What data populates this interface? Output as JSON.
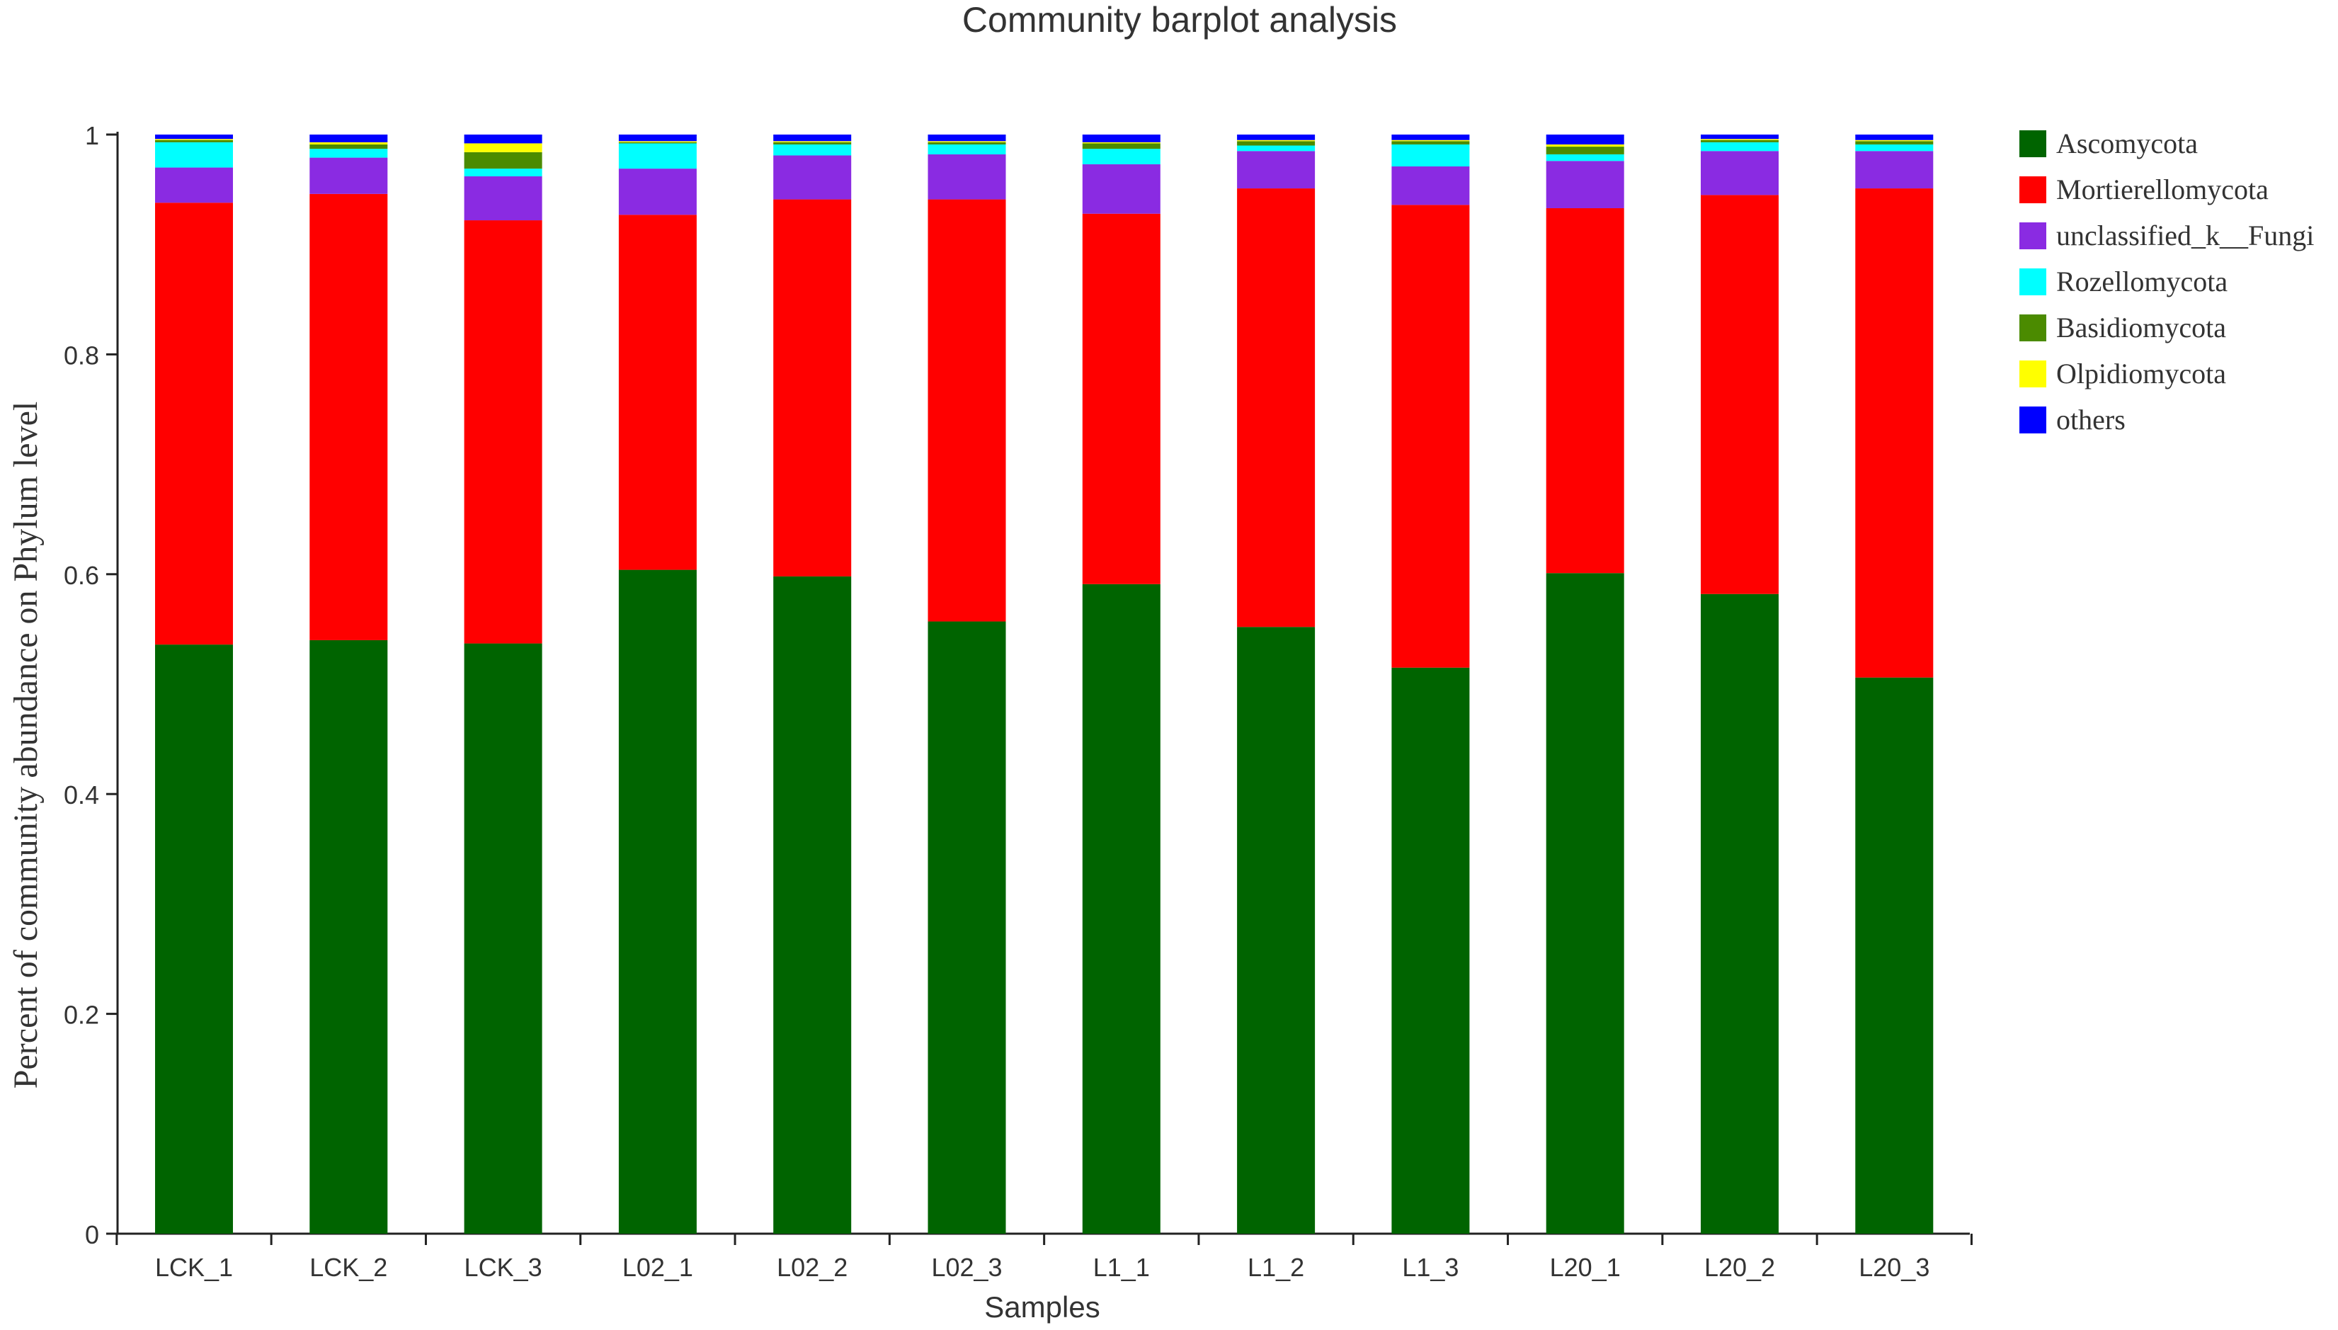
{
  "chart_data": {
    "type": "bar",
    "stacked": true,
    "title": "Community barplot analysis",
    "xlabel": "Samples",
    "ylabel": "Percent of community abundance on Phylum level",
    "ylim": [
      0,
      1
    ],
    "yticks": [
      0,
      0.2,
      0.4,
      0.6,
      0.8,
      1
    ],
    "ytick_labels": [
      "0",
      "0.2",
      "0.4",
      "0.6",
      "0.8",
      "1"
    ],
    "categories": [
      "LCK_1",
      "LCK_2",
      "LCK_3",
      "L02_1",
      "L02_2",
      "L02_3",
      "L1_1",
      "L1_2",
      "L1_3",
      "L20_1",
      "L20_2",
      "L20_3"
    ],
    "legend_position": "right",
    "series": [
      {
        "name": "Ascomycota",
        "color": "#006400",
        "values": [
          0.536,
          0.54,
          0.537,
          0.604,
          0.598,
          0.557,
          0.591,
          0.552,
          0.515,
          0.601,
          0.582,
          0.506
        ]
      },
      {
        "name": "Mortierellomycota",
        "color": "#ff0000",
        "values": [
          0.402,
          0.406,
          0.385,
          0.323,
          0.343,
          0.384,
          0.337,
          0.399,
          0.421,
          0.332,
          0.363,
          0.445
        ]
      },
      {
        "name": "unclassified_k__Fungi",
        "color": "#8a2be2",
        "values": [
          0.032,
          0.033,
          0.04,
          0.042,
          0.04,
          0.041,
          0.045,
          0.034,
          0.035,
          0.043,
          0.04,
          0.034
        ]
      },
      {
        "name": "Rozellomycota",
        "color": "#00ffff",
        "values": [
          0.023,
          0.008,
          0.007,
          0.023,
          0.01,
          0.009,
          0.014,
          0.005,
          0.02,
          0.006,
          0.008,
          0.006
        ]
      },
      {
        "name": "Basidiomycota",
        "color": "#4b8b00",
        "values": [
          0.002,
          0.004,
          0.015,
          0.001,
          0.002,
          0.002,
          0.005,
          0.004,
          0.003,
          0.007,
          0.002,
          0.003
        ]
      },
      {
        "name": "Olpidiomycota",
        "color": "#ffff00",
        "values": [
          0.001,
          0.002,
          0.008,
          0.001,
          0.001,
          0.001,
          0.001,
          0.001,
          0.001,
          0.002,
          0.001,
          0.001
        ]
      },
      {
        "name": "others",
        "color": "#0000ff",
        "values": [
          0.004,
          0.007,
          0.008,
          0.006,
          0.006,
          0.006,
          0.007,
          0.005,
          0.005,
          0.009,
          0.004,
          0.005
        ]
      }
    ]
  }
}
